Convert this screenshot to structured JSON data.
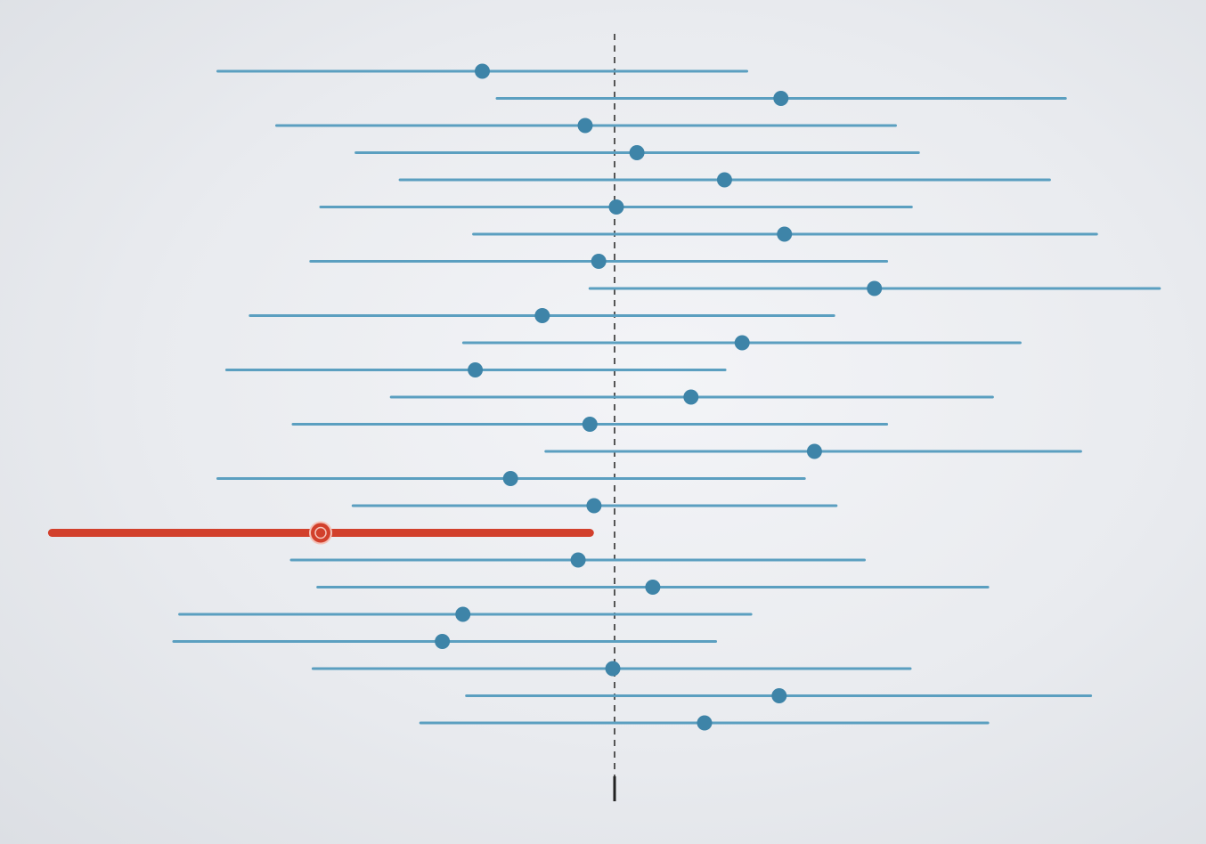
{
  "chart_data": {
    "type": "interval",
    "true_value": 0,
    "grid": false,
    "legend": "none",
    "colors": {
      "interval": "#5b9fc0",
      "point": "#3e84a8",
      "highlight": "#d2402c",
      "reference": "#555555"
    },
    "intervals": [
      {
        "low": -6.75,
        "estimate": -2.25,
        "high": 2.25,
        "highlight": false
      },
      {
        "low": -2.0,
        "estimate": 2.83,
        "high": 7.67,
        "highlight": false
      },
      {
        "low": -5.75,
        "estimate": -0.5,
        "high": 4.78,
        "highlight": false
      },
      {
        "low": -4.4,
        "estimate": 0.38,
        "high": 5.17,
        "highlight": false
      },
      {
        "low": -3.65,
        "estimate": 1.87,
        "high": 7.4,
        "highlight": false
      },
      {
        "low": -5.0,
        "estimate": 0.03,
        "high": 5.05,
        "highlight": false
      },
      {
        "low": -2.4,
        "estimate": 2.89,
        "high": 8.2,
        "highlight": false
      },
      {
        "low": -5.17,
        "estimate": -0.27,
        "high": 4.63,
        "highlight": false
      },
      {
        "low": -0.42,
        "estimate": 4.42,
        "high": 9.27,
        "highlight": false
      },
      {
        "low": -6.2,
        "estimate": -1.23,
        "high": 3.73,
        "highlight": false
      },
      {
        "low": -2.57,
        "estimate": 2.17,
        "high": 6.9,
        "highlight": false
      },
      {
        "low": -6.6,
        "estimate": -2.37,
        "high": 1.88,
        "highlight": false
      },
      {
        "low": -3.8,
        "estimate": 1.3,
        "high": 6.43,
        "highlight": false
      },
      {
        "low": -5.47,
        "estimate": -0.42,
        "high": 4.63,
        "highlight": false
      },
      {
        "low": -1.17,
        "estimate": 3.4,
        "high": 7.93,
        "highlight": false
      },
      {
        "low": -6.75,
        "estimate": -1.77,
        "high": 3.23,
        "highlight": false
      },
      {
        "low": -4.45,
        "estimate": -0.35,
        "high": 3.77,
        "highlight": false
      },
      {
        "low": -9.57,
        "estimate": -5.0,
        "high": -0.42,
        "highlight": true
      },
      {
        "low": -5.5,
        "estimate": -0.62,
        "high": 4.25,
        "highlight": false
      },
      {
        "low": -5.05,
        "estimate": 0.65,
        "high": 6.35,
        "highlight": false
      },
      {
        "low": -7.4,
        "estimate": -2.58,
        "high": 2.32,
        "highlight": false
      },
      {
        "low": -7.5,
        "estimate": -2.93,
        "high": 1.72,
        "highlight": false
      },
      {
        "low": -5.13,
        "estimate": -0.03,
        "high": 5.03,
        "highlight": false
      },
      {
        "low": -2.52,
        "estimate": 2.8,
        "high": 8.1,
        "highlight": false
      },
      {
        "low": -3.3,
        "estimate": 1.53,
        "high": 6.35,
        "highlight": false
      }
    ]
  }
}
